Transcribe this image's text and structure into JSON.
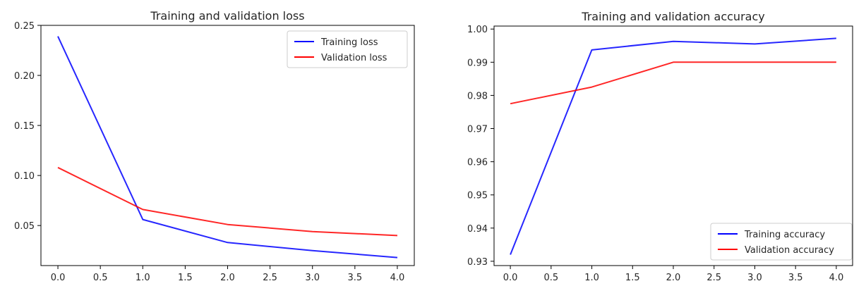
{
  "chart_data": [
    {
      "type": "line",
      "title": "Training and validation loss",
      "xlabel": "",
      "ylabel": "",
      "x": [
        0,
        1,
        2,
        3,
        4
      ],
      "xlim": [
        -0.2,
        4.2
      ],
      "ylim": [
        0.01,
        0.25
      ],
      "xticks": [
        0.0,
        0.5,
        1.0,
        1.5,
        2.0,
        2.5,
        3.0,
        3.5,
        4.0
      ],
      "xtick_labels": [
        "0.0",
        "0.5",
        "1.0",
        "1.5",
        "2.0",
        "2.5",
        "3.0",
        "3.5",
        "4.0"
      ],
      "yticks": [
        0.05,
        0.1,
        0.15,
        0.2,
        0.25
      ],
      "ytick_labels": [
        "0.05",
        "0.10",
        "0.15",
        "0.20",
        "0.25"
      ],
      "grid": false,
      "legend_position": "upper right",
      "series": [
        {
          "name": "Training loss",
          "color": "#0000ff",
          "values": [
            0.239,
            0.056,
            0.033,
            0.025,
            0.018
          ]
        },
        {
          "name": "Validation loss",
          "color": "#ff0000",
          "values": [
            0.108,
            0.066,
            0.051,
            0.044,
            0.04
          ]
        }
      ]
    },
    {
      "type": "line",
      "title": "Training and validation accuracy",
      "xlabel": "",
      "ylabel": "",
      "x": [
        0,
        1,
        2,
        3,
        4
      ],
      "xlim": [
        -0.2,
        4.2
      ],
      "ylim": [
        0.9287,
        1.0009
      ],
      "xticks": [
        0.0,
        0.5,
        1.0,
        1.5,
        2.0,
        2.5,
        3.0,
        3.5,
        4.0
      ],
      "xtick_labels": [
        "0.0",
        "0.5",
        "1.0",
        "1.5",
        "2.0",
        "2.5",
        "3.0",
        "3.5",
        "4.0"
      ],
      "yticks": [
        0.93,
        0.94,
        0.95,
        0.96,
        0.97,
        0.98,
        0.99,
        1.0
      ],
      "ytick_labels": [
        "0.93",
        "0.94",
        "0.95",
        "0.96",
        "0.97",
        "0.98",
        "0.99",
        "1.00"
      ],
      "grid": false,
      "legend_position": "lower right",
      "series": [
        {
          "name": "Training accuracy",
          "color": "#0000ff",
          "values": [
            0.932,
            0.9937,
            0.9963,
            0.9955,
            0.9972
          ]
        },
        {
          "name": "Validation accuracy",
          "color": "#ff0000",
          "values": [
            0.9775,
            0.9825,
            0.99,
            0.99,
            0.99
          ]
        }
      ]
    }
  ]
}
